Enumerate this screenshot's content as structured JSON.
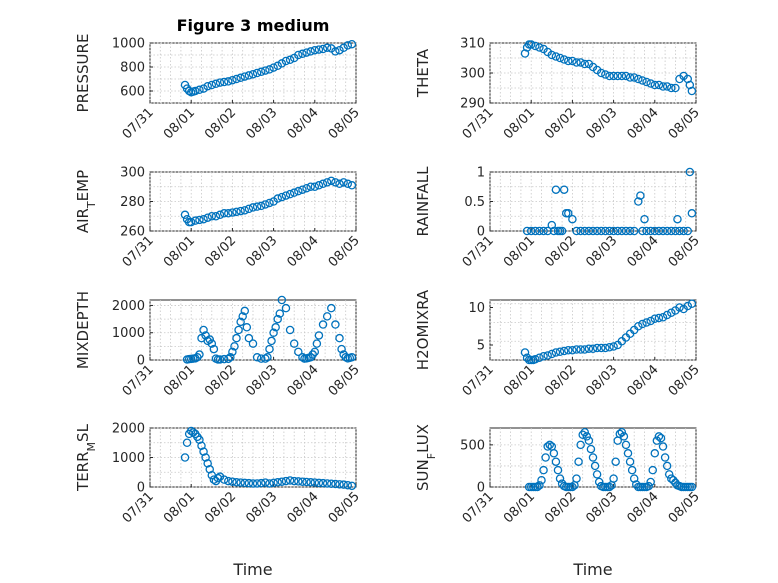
{
  "figure": {
    "title": "Figure 3 medium",
    "marker_color": "#0072BD"
  },
  "chart_data": [
    {
      "type": "scatter",
      "panel": "PRESSURE",
      "title": "Figure 3 medium",
      "ylabel": "PRESSURE",
      "ylim": [
        500,
        1000
      ],
      "yticks": [
        600,
        800,
        1000
      ],
      "xlim": [
        "07/31",
        "08/05"
      ],
      "xtick_labels": [
        "07/31",
        "08/01",
        "08/02",
        "08/03",
        "08/04",
        "08/05"
      ],
      "xlabel": "",
      "grid": true,
      "x_days": [
        0.85,
        0.9,
        0.95,
        1.0,
        1.05,
        1.1,
        1.2,
        1.3,
        1.4,
        1.5,
        1.6,
        1.7,
        1.8,
        1.9,
        2.0,
        2.1,
        2.2,
        2.3,
        2.4,
        2.5,
        2.6,
        2.7,
        2.8,
        2.9,
        3.0,
        3.1,
        3.2,
        3.3,
        3.4,
        3.5,
        3.6,
        3.7,
        3.8,
        3.9,
        4.0,
        4.1,
        4.2,
        4.3,
        4.4,
        4.5,
        4.6,
        4.7,
        4.8,
        4.9
      ],
      "y": [
        650,
        620,
        600,
        590,
        595,
        600,
        610,
        620,
        640,
        650,
        660,
        670,
        675,
        680,
        690,
        700,
        710,
        720,
        730,
        740,
        750,
        760,
        770,
        780,
        795,
        810,
        830,
        850,
        860,
        875,
        900,
        910,
        920,
        930,
        940,
        945,
        950,
        960,
        955,
        930,
        940,
        960,
        980,
        990
      ]
    },
    {
      "type": "scatter",
      "panel": "THETA",
      "ylabel": "THETA",
      "ylim": [
        290,
        310
      ],
      "yticks": [
        290,
        300,
        310
      ],
      "xlim": [
        "07/31",
        "08/05"
      ],
      "xtick_labels": [
        "07/31",
        "08/01",
        "08/02",
        "08/03",
        "08/04",
        "08/05"
      ],
      "grid": true,
      "x_days": [
        0.85,
        0.9,
        0.95,
        1.0,
        1.1,
        1.2,
        1.3,
        1.4,
        1.5,
        1.6,
        1.7,
        1.8,
        1.9,
        2.0,
        2.1,
        2.2,
        2.3,
        2.4,
        2.5,
        2.6,
        2.7,
        2.8,
        2.9,
        3.0,
        3.1,
        3.2,
        3.3,
        3.4,
        3.5,
        3.6,
        3.7,
        3.8,
        3.9,
        4.0,
        4.1,
        4.2,
        4.3,
        4.4,
        4.5,
        4.6,
        4.7,
        4.8,
        4.85,
        4.9
      ],
      "y": [
        306.5,
        308.5,
        309.5,
        309.5,
        309,
        308.5,
        308,
        307,
        306,
        305.5,
        305,
        304.5,
        304,
        304,
        303.5,
        303.5,
        303,
        303,
        302,
        301,
        300,
        299.5,
        299,
        299,
        299,
        299,
        299,
        298.5,
        298.5,
        298,
        297.5,
        297,
        296.5,
        296,
        296,
        295.5,
        295.5,
        295,
        295,
        298,
        299,
        298,
        296,
        294
      ]
    },
    {
      "type": "scatter",
      "panel": "AIR_TEMP",
      "ylabel_main": "AIR",
      "ylabel_sub": "T",
      "ylabel_rest": "EMP",
      "ylim": [
        260,
        300
      ],
      "yticks": [
        260,
        280,
        300
      ],
      "xlim": [
        "07/31",
        "08/05"
      ],
      "xtick_labels": [
        "07/31",
        "08/01",
        "08/02",
        "08/03",
        "08/04",
        "08/05"
      ],
      "grid": true,
      "x_days": [
        0.85,
        0.9,
        0.95,
        1.0,
        1.1,
        1.2,
        1.3,
        1.4,
        1.5,
        1.6,
        1.7,
        1.8,
        1.9,
        2.0,
        2.1,
        2.2,
        2.3,
        2.4,
        2.5,
        2.6,
        2.7,
        2.8,
        2.9,
        3.0,
        3.1,
        3.2,
        3.3,
        3.4,
        3.5,
        3.6,
        3.7,
        3.8,
        3.9,
        4.0,
        4.1,
        4.2,
        4.3,
        4.4,
        4.5,
        4.6,
        4.7,
        4.8,
        4.9
      ],
      "y": [
        271,
        268,
        266,
        266,
        267,
        267.5,
        268,
        269,
        270,
        270,
        271,
        272,
        272,
        272.5,
        273,
        273.5,
        274,
        275,
        276,
        276.5,
        277,
        278,
        279,
        280,
        282,
        283,
        284,
        285,
        286,
        287,
        288,
        289,
        290,
        290,
        291,
        292,
        293,
        294,
        293,
        292,
        293,
        292,
        291
      ]
    },
    {
      "type": "scatter",
      "panel": "RAINFALL",
      "ylabel": "RAINFALL",
      "ylim": [
        0,
        1
      ],
      "yticks": [
        0,
        0.5,
        1
      ],
      "xlim": [
        "07/31",
        "08/05"
      ],
      "xtick_labels": [
        "07/31",
        "08/01",
        "08/02",
        "08/03",
        "08/04",
        "08/05"
      ],
      "grid": true,
      "x_days": [
        0.9,
        1.0,
        1.1,
        1.2,
        1.3,
        1.4,
        1.5,
        1.55,
        1.6,
        1.65,
        1.7,
        1.75,
        1.8,
        1.85,
        1.9,
        2.0,
        2.1,
        2.2,
        2.3,
        2.4,
        2.5,
        2.6,
        2.7,
        2.8,
        2.9,
        3.0,
        3.1,
        3.2,
        3.3,
        3.4,
        3.5,
        3.6,
        3.65,
        3.7,
        3.75,
        3.8,
        3.9,
        4.0,
        4.1,
        4.2,
        4.3,
        4.4,
        4.5,
        4.55,
        4.6,
        4.7,
        4.8,
        4.85,
        4.9
      ],
      "y": [
        0,
        0,
        0,
        0,
        0,
        0,
        0.1,
        0,
        0.7,
        0,
        0,
        0,
        0.7,
        0.3,
        0.3,
        0.2,
        0,
        0,
        0,
        0,
        0,
        0,
        0,
        0,
        0,
        0,
        0,
        0,
        0,
        0,
        0,
        0.5,
        0.6,
        0,
        0.2,
        0,
        0,
        0,
        0,
        0,
        0,
        0,
        0,
        0.2,
        0,
        0,
        0,
        1.0,
        0.3
      ]
    },
    {
      "type": "scatter",
      "panel": "MIXDEPTH",
      "ylabel": "MIXDEPTH",
      "ylim": [
        0,
        2200
      ],
      "yticks": [
        0,
        1000,
        2000
      ],
      "xlim": [
        "07/31",
        "08/05"
      ],
      "xtick_labels": [
        "07/31",
        "08/01",
        "08/02",
        "08/03",
        "08/04",
        "08/05"
      ],
      "grid": true,
      "x_days": [
        0.9,
        0.95,
        1.0,
        1.05,
        1.1,
        1.15,
        1.2,
        1.25,
        1.3,
        1.35,
        1.4,
        1.45,
        1.5,
        1.55,
        1.6,
        1.65,
        1.7,
        1.8,
        1.9,
        1.95,
        2.0,
        2.05,
        2.1,
        2.15,
        2.2,
        2.25,
        2.3,
        2.35,
        2.4,
        2.5,
        2.6,
        2.7,
        2.8,
        2.85,
        2.9,
        2.95,
        3.0,
        3.05,
        3.1,
        3.15,
        3.2,
        3.3,
        3.4,
        3.5,
        3.6,
        3.7,
        3.75,
        3.8,
        3.85,
        3.9,
        3.95,
        4.0,
        4.05,
        4.1,
        4.2,
        4.3,
        4.4,
        4.5,
        4.6,
        4.65,
        4.7,
        4.75,
        4.8,
        4.85,
        4.9
      ],
      "y": [
        20,
        30,
        40,
        50,
        60,
        100,
        200,
        800,
        1100,
        900,
        700,
        750,
        600,
        400,
        50,
        20,
        20,
        30,
        40,
        100,
        300,
        500,
        800,
        1100,
        1400,
        1600,
        1800,
        1200,
        800,
        600,
        100,
        50,
        50,
        100,
        400,
        700,
        1000,
        1200,
        1500,
        1700,
        2200,
        1900,
        1100,
        600,
        300,
        100,
        50,
        60,
        80,
        100,
        200,
        300,
        600,
        900,
        1300,
        1600,
        1900,
        1300,
        800,
        400,
        200,
        100,
        60,
        80,
        100
      ]
    },
    {
      "type": "scatter",
      "panel": "H2OMIXRA",
      "ylabel": "H2OMIXRA",
      "ylim": [
        3,
        11
      ],
      "yticks": [
        5,
        10
      ],
      "xlim": [
        "07/31",
        "08/05"
      ],
      "xtick_labels": [
        "07/31",
        "08/01",
        "08/02",
        "08/03",
        "08/04",
        "08/05"
      ],
      "grid": true,
      "x_days": [
        0.85,
        0.9,
        0.95,
        1.0,
        1.05,
        1.1,
        1.2,
        1.3,
        1.4,
        1.5,
        1.6,
        1.7,
        1.8,
        1.9,
        2.0,
        2.1,
        2.2,
        2.3,
        2.4,
        2.5,
        2.6,
        2.7,
        2.8,
        2.9,
        3.0,
        3.1,
        3.2,
        3.3,
        3.4,
        3.5,
        3.6,
        3.7,
        3.8,
        3.9,
        4.0,
        4.1,
        4.2,
        4.3,
        4.4,
        4.5,
        4.6,
        4.7,
        4.8,
        4.9
      ],
      "y": [
        4,
        3.3,
        2.9,
        2.8,
        2.9,
        3.1,
        3.3,
        3.5,
        3.6,
        3.8,
        4.0,
        4.1,
        4.2,
        4.3,
        4.3,
        4.4,
        4.4,
        4.4,
        4.5,
        4.5,
        4.6,
        4.6,
        4.6,
        4.7,
        4.8,
        5.0,
        5.5,
        6.0,
        6.5,
        7.0,
        7.5,
        7.8,
        8.0,
        8.2,
        8.5,
        8.6,
        8.7,
        9.0,
        9.3,
        9.6,
        10,
        9.8,
        10.2,
        10.5
      ]
    },
    {
      "type": "scatter",
      "panel": "TERR_MSL",
      "ylabel_main": "TERR",
      "ylabel_sub": "M",
      "ylabel_rest": "SL",
      "ylim": [
        0,
        2000
      ],
      "yticks": [
        0,
        1000,
        2000
      ],
      "xlim": [
        "07/31",
        "08/05"
      ],
      "xtick_labels": [
        "07/31",
        "08/01",
        "08/02",
        "08/03",
        "08/04",
        "08/05"
      ],
      "xlabel": "Time",
      "grid": true,
      "x_days": [
        0.85,
        0.9,
        0.95,
        1.0,
        1.05,
        1.1,
        1.15,
        1.2,
        1.25,
        1.3,
        1.35,
        1.4,
        1.45,
        1.5,
        1.55,
        1.6,
        1.65,
        1.7,
        1.8,
        1.9,
        2.0,
        2.1,
        2.2,
        2.3,
        2.4,
        2.5,
        2.6,
        2.7,
        2.8,
        2.9,
        3.0,
        3.1,
        3.2,
        3.3,
        3.4,
        3.5,
        3.6,
        3.7,
        3.8,
        3.9,
        4.0,
        4.1,
        4.2,
        4.3,
        4.4,
        4.5,
        4.6,
        4.7,
        4.8,
        4.9
      ],
      "y": [
        1000,
        1500,
        1800,
        1900,
        1850,
        1800,
        1700,
        1600,
        1400,
        1200,
        1000,
        800,
        600,
        400,
        250,
        200,
        300,
        350,
        250,
        200,
        180,
        160,
        150,
        140,
        130,
        120,
        120,
        130,
        150,
        120,
        140,
        160,
        180,
        200,
        220,
        200,
        190,
        180,
        170,
        160,
        150,
        140,
        130,
        120,
        110,
        100,
        90,
        80,
        60,
        40
      ]
    },
    {
      "type": "scatter",
      "panel": "SUN_FLUX",
      "ylabel_main": "SUN",
      "ylabel_sub": "F",
      "ylabel_rest": "LUX",
      "ylim": [
        0,
        700
      ],
      "yticks": [
        0,
        500
      ],
      "xlim": [
        "07/31",
        "08/05"
      ],
      "xtick_labels": [
        "07/31",
        "08/01",
        "08/02",
        "08/03",
        "08/04",
        "08/05"
      ],
      "xlabel": "Time",
      "grid": true,
      "x_days": [
        0.95,
        1.0,
        1.05,
        1.1,
        1.15,
        1.2,
        1.25,
        1.3,
        1.35,
        1.4,
        1.45,
        1.5,
        1.55,
        1.6,
        1.65,
        1.7,
        1.75,
        1.8,
        1.85,
        1.9,
        1.95,
        2.0,
        2.05,
        2.1,
        2.15,
        2.2,
        2.25,
        2.3,
        2.35,
        2.4,
        2.45,
        2.5,
        2.55,
        2.6,
        2.65,
        2.7,
        2.75,
        2.8,
        2.85,
        2.9,
        2.95,
        3.0,
        3.05,
        3.1,
        3.15,
        3.2,
        3.25,
        3.3,
        3.35,
        3.4,
        3.45,
        3.5,
        3.55,
        3.6,
        3.65,
        3.7,
        3.75,
        3.8,
        3.85,
        3.9,
        3.95,
        4.0,
        4.05,
        4.1,
        4.15,
        4.2,
        4.25,
        4.3,
        4.35,
        4.4,
        4.45,
        4.5,
        4.55,
        4.6,
        4.65,
        4.7,
        4.75,
        4.8,
        4.85,
        4.9
      ],
      "y": [
        0,
        0,
        0,
        0,
        0,
        20,
        80,
        200,
        350,
        480,
        500,
        480,
        400,
        300,
        200,
        100,
        40,
        10,
        0,
        0,
        0,
        0,
        20,
        100,
        300,
        500,
        620,
        650,
        600,
        550,
        450,
        350,
        250,
        150,
        60,
        10,
        0,
        0,
        0,
        0,
        20,
        100,
        300,
        550,
        630,
        650,
        600,
        500,
        400,
        300,
        200,
        100,
        30,
        0,
        0,
        0,
        0,
        0,
        10,
        60,
        200,
        400,
        550,
        600,
        580,
        480,
        350,
        250,
        150,
        100,
        80,
        50,
        20,
        10,
        0,
        0,
        0,
        0,
        0,
        0
      ]
    }
  ]
}
